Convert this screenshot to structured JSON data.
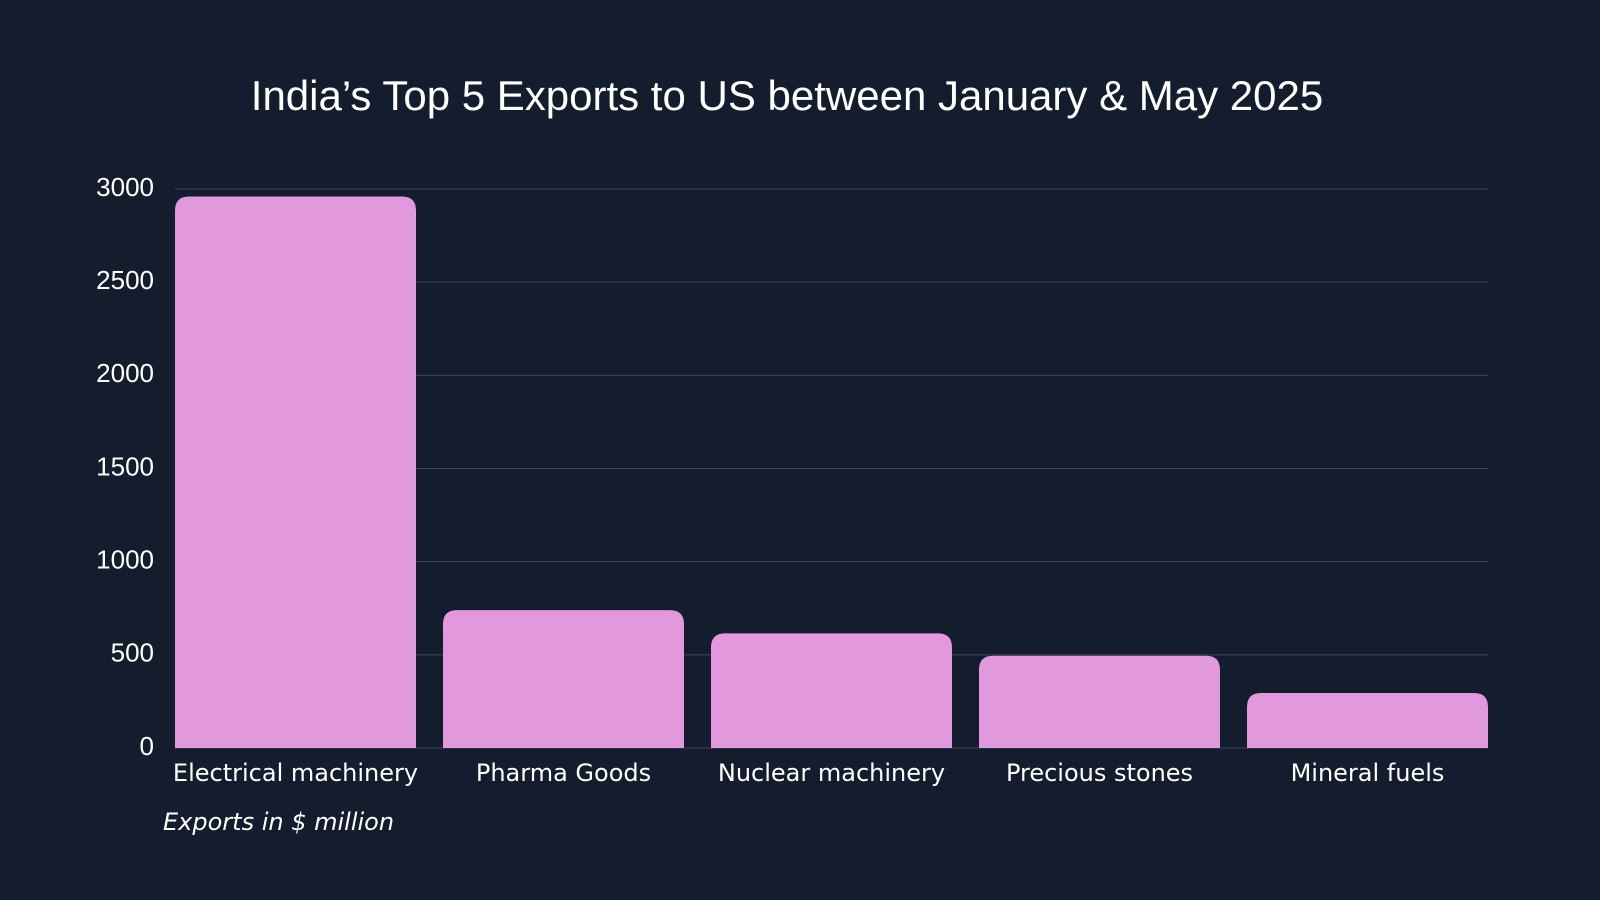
{
  "chart_data": {
    "type": "bar",
    "title": "India’s Top 5 Exports to US between January & May 2025",
    "footnote": "Exports in $ million",
    "categories": [
      "Electrical machinery",
      "Pharma Goods",
      "Nuclear machinery",
      "Precious stones",
      "Mineral fuels"
    ],
    "values": [
      2960,
      740,
      615,
      495,
      295
    ],
    "ylim": [
      0,
      3000
    ],
    "yticks": [
      0,
      500,
      1000,
      1500,
      2000,
      2500,
      3000
    ],
    "xlabel": "",
    "ylabel": "",
    "grid": true,
    "legend": "none",
    "colors": {
      "background": "#131d2d",
      "bar": "#e298dd",
      "grid": "#3a4556",
      "text": "#ffffff"
    }
  }
}
